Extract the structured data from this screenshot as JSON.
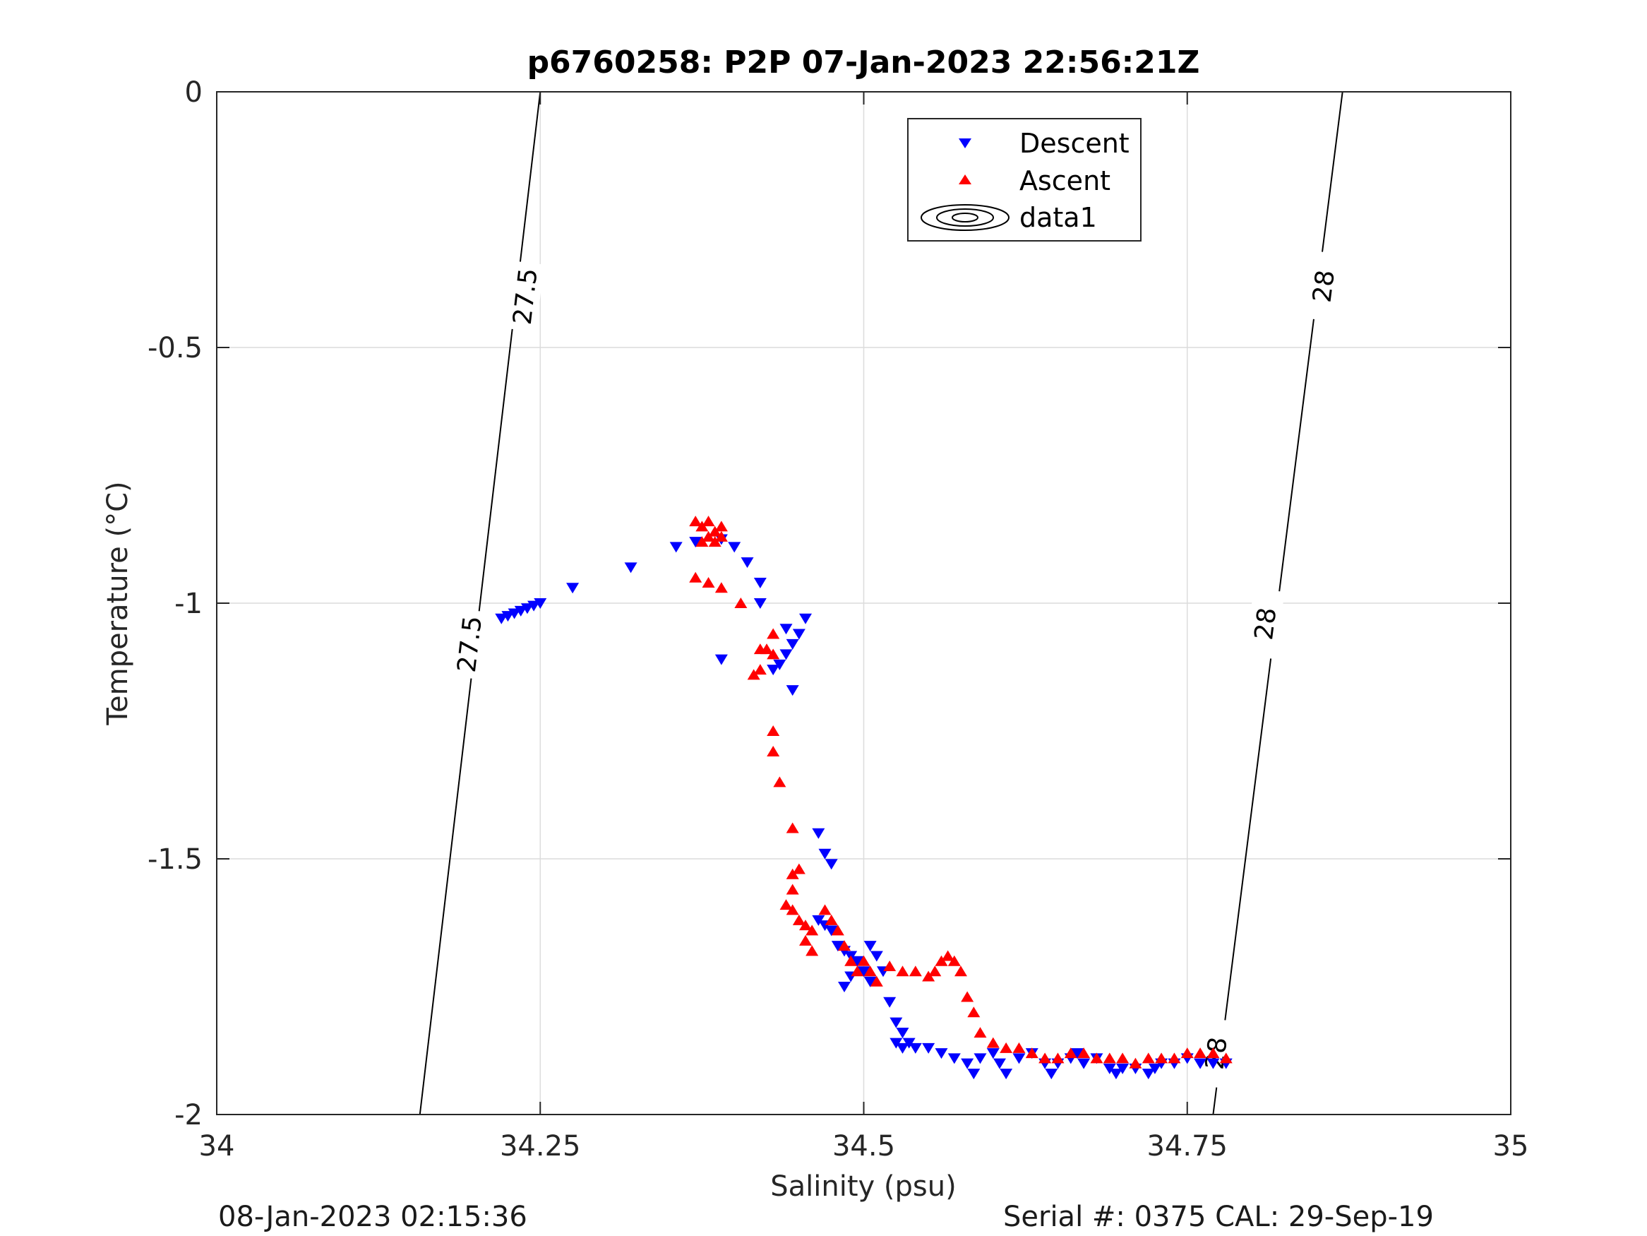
{
  "chart_data": {
    "type": "scatter",
    "title": "p6760258: P2P 07-Jan-2023 22:56:21Z",
    "xlabel": "Salinity (psu)",
    "ylabel": "Temperature (°C)",
    "xlim": [
      34,
      35
    ],
    "ylim": [
      -2,
      0
    ],
    "xticks": [
      34,
      34.25,
      34.5,
      34.75,
      35
    ],
    "xtick_labels": [
      "34",
      "34.25",
      "34.5",
      "34.75",
      "35"
    ],
    "yticks": [
      0,
      -0.5,
      -1,
      -1.5,
      -2
    ],
    "ytick_labels": [
      "0",
      "-0.5",
      "-1",
      "-1.5",
      "-2"
    ],
    "grid": true,
    "legend_position": "top-center",
    "legend": [
      "Descent",
      "Ascent",
      "data1"
    ],
    "series": [
      {
        "name": "Descent",
        "marker": "triangle-down",
        "color": "#0000ff",
        "points": [
          [
            34.22,
            -1.03
          ],
          [
            34.225,
            -1.025
          ],
          [
            34.23,
            -1.02
          ],
          [
            34.235,
            -1.015
          ],
          [
            34.24,
            -1.01
          ],
          [
            34.245,
            -1.005
          ],
          [
            34.25,
            -1.0
          ],
          [
            34.275,
            -0.97
          ],
          [
            34.32,
            -0.93
          ],
          [
            34.355,
            -0.89
          ],
          [
            34.37,
            -0.88
          ],
          [
            34.39,
            -0.875
          ],
          [
            34.4,
            -0.89
          ],
          [
            34.41,
            -0.92
          ],
          [
            34.42,
            -0.96
          ],
          [
            34.42,
            -1.0
          ],
          [
            34.39,
            -1.11
          ],
          [
            34.44,
            -1.05
          ],
          [
            34.45,
            -1.06
          ],
          [
            34.455,
            -1.03
          ],
          [
            34.445,
            -1.08
          ],
          [
            34.44,
            -1.1
          ],
          [
            34.435,
            -1.12
          ],
          [
            34.43,
            -1.13
          ],
          [
            34.445,
            -1.17
          ],
          [
            34.465,
            -1.45
          ],
          [
            34.47,
            -1.49
          ],
          [
            34.475,
            -1.51
          ],
          [
            34.465,
            -1.62
          ],
          [
            34.47,
            -1.63
          ],
          [
            34.475,
            -1.64
          ],
          [
            34.48,
            -1.67
          ],
          [
            34.485,
            -1.68
          ],
          [
            34.49,
            -1.69
          ],
          [
            34.495,
            -1.7
          ],
          [
            34.505,
            -1.67
          ],
          [
            34.51,
            -1.69
          ],
          [
            34.515,
            -1.72
          ],
          [
            34.5,
            -1.72
          ],
          [
            34.49,
            -1.73
          ],
          [
            34.485,
            -1.75
          ],
          [
            34.505,
            -1.74
          ],
          [
            34.52,
            -1.78
          ],
          [
            34.525,
            -1.82
          ],
          [
            34.53,
            -1.84
          ],
          [
            34.525,
            -1.86
          ],
          [
            34.53,
            -1.87
          ],
          [
            34.535,
            -1.86
          ],
          [
            34.54,
            -1.87
          ],
          [
            34.55,
            -1.87
          ],
          [
            34.56,
            -1.88
          ],
          [
            34.57,
            -1.89
          ],
          [
            34.58,
            -1.9
          ],
          [
            34.585,
            -1.92
          ],
          [
            34.59,
            -1.89
          ],
          [
            34.6,
            -1.88
          ],
          [
            34.605,
            -1.9
          ],
          [
            34.61,
            -1.92
          ],
          [
            34.62,
            -1.89
          ],
          [
            34.63,
            -1.88
          ],
          [
            34.64,
            -1.9
          ],
          [
            34.645,
            -1.92
          ],
          [
            34.65,
            -1.9
          ],
          [
            34.66,
            -1.89
          ],
          [
            34.665,
            -1.88
          ],
          [
            34.67,
            -1.9
          ],
          [
            34.68,
            -1.89
          ],
          [
            34.69,
            -1.91
          ],
          [
            34.695,
            -1.92
          ],
          [
            34.7,
            -1.91
          ],
          [
            34.71,
            -1.91
          ],
          [
            34.72,
            -1.92
          ],
          [
            34.725,
            -1.91
          ],
          [
            34.73,
            -1.9
          ],
          [
            34.74,
            -1.9
          ],
          [
            34.75,
            -1.89
          ],
          [
            34.76,
            -1.9
          ],
          [
            34.77,
            -1.9
          ],
          [
            34.78,
            -1.9
          ]
        ]
      },
      {
        "name": "Ascent",
        "marker": "triangle-up",
        "color": "#ff0000",
        "points": [
          [
            34.37,
            -0.84
          ],
          [
            34.375,
            -0.85
          ],
          [
            34.38,
            -0.84
          ],
          [
            34.385,
            -0.86
          ],
          [
            34.39,
            -0.85
          ],
          [
            34.38,
            -0.87
          ],
          [
            34.375,
            -0.88
          ],
          [
            34.385,
            -0.88
          ],
          [
            34.39,
            -0.87
          ],
          [
            34.37,
            -0.95
          ],
          [
            34.38,
            -0.96
          ],
          [
            34.39,
            -0.97
          ],
          [
            34.405,
            -1.0
          ],
          [
            34.42,
            -1.09
          ],
          [
            34.425,
            -1.09
          ],
          [
            34.43,
            -1.06
          ],
          [
            34.43,
            -1.1
          ],
          [
            34.42,
            -1.13
          ],
          [
            34.415,
            -1.14
          ],
          [
            34.43,
            -1.25
          ],
          [
            34.43,
            -1.29
          ],
          [
            34.435,
            -1.35
          ],
          [
            34.445,
            -1.44
          ],
          [
            34.45,
            -1.52
          ],
          [
            34.445,
            -1.53
          ],
          [
            34.445,
            -1.56
          ],
          [
            34.44,
            -1.59
          ],
          [
            34.445,
            -1.6
          ],
          [
            34.45,
            -1.62
          ],
          [
            34.455,
            -1.63
          ],
          [
            34.46,
            -1.64
          ],
          [
            34.455,
            -1.66
          ],
          [
            34.46,
            -1.68
          ],
          [
            34.47,
            -1.6
          ],
          [
            34.475,
            -1.62
          ],
          [
            34.48,
            -1.64
          ],
          [
            34.485,
            -1.67
          ],
          [
            34.49,
            -1.7
          ],
          [
            34.495,
            -1.72
          ],
          [
            34.5,
            -1.7
          ],
          [
            34.505,
            -1.72
          ],
          [
            34.51,
            -1.74
          ],
          [
            34.52,
            -1.71
          ],
          [
            34.53,
            -1.72
          ],
          [
            34.54,
            -1.72
          ],
          [
            34.55,
            -1.73
          ],
          [
            34.555,
            -1.72
          ],
          [
            34.56,
            -1.7
          ],
          [
            34.565,
            -1.69
          ],
          [
            34.57,
            -1.7
          ],
          [
            34.575,
            -1.72
          ],
          [
            34.58,
            -1.77
          ],
          [
            34.585,
            -1.8
          ],
          [
            34.59,
            -1.84
          ],
          [
            34.6,
            -1.86
          ],
          [
            34.61,
            -1.87
          ],
          [
            34.62,
            -1.87
          ],
          [
            34.63,
            -1.88
          ],
          [
            34.64,
            -1.89
          ],
          [
            34.65,
            -1.89
          ],
          [
            34.66,
            -1.88
          ],
          [
            34.67,
            -1.88
          ],
          [
            34.68,
            -1.89
          ],
          [
            34.69,
            -1.89
          ],
          [
            34.7,
            -1.89
          ],
          [
            34.71,
            -1.9
          ],
          [
            34.72,
            -1.89
          ],
          [
            34.73,
            -1.89
          ],
          [
            34.74,
            -1.89
          ],
          [
            34.75,
            -1.88
          ],
          [
            34.76,
            -1.88
          ],
          [
            34.77,
            -1.88
          ],
          [
            34.78,
            -1.89
          ]
        ]
      },
      {
        "name": "data1",
        "type": "contour",
        "color": "#000000",
        "contours": [
          {
            "label": "27.5",
            "points": [
              [
                34.157,
                -2.0
              ],
              [
                34.25,
                0.0
              ]
            ],
            "labels_at": [
              [
                34.195,
                -1.08
              ],
              [
                34.238,
                -0.4
              ]
            ]
          },
          {
            "label": "28",
            "points": [
              [
                34.77,
                -2.0
              ],
              [
                34.87,
                0.0
              ]
            ],
            "labels_at": [
              [
                34.772,
                -1.88
              ],
              [
                34.81,
                -1.04
              ],
              [
                34.855,
                -0.38
              ]
            ]
          }
        ]
      }
    ]
  },
  "footer": {
    "left": "08-Jan-2023 02:15:36",
    "right": "Serial #: 0375  CAL: 29-Sep-19"
  }
}
